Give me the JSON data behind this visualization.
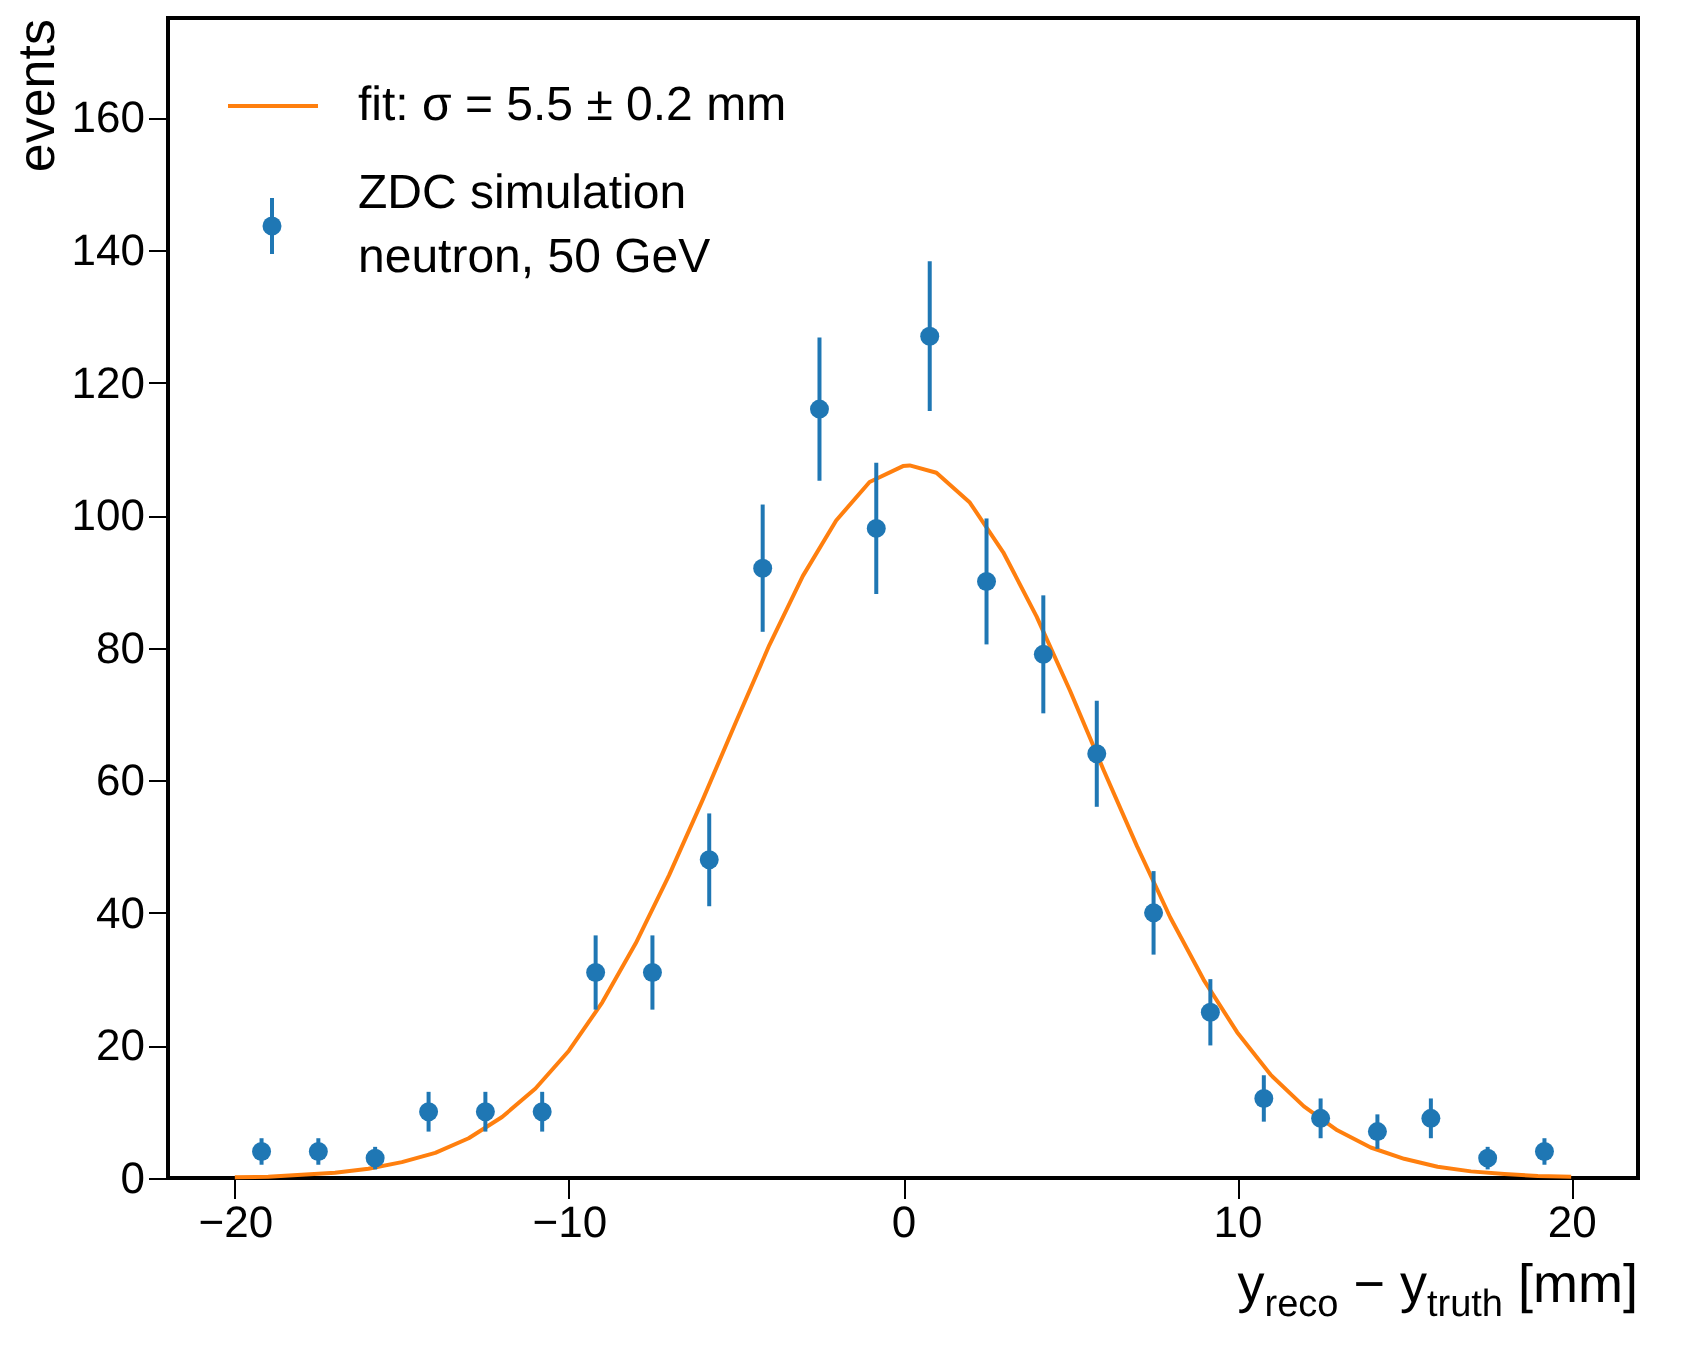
{
  "chart_data": {
    "type": "scatter",
    "xlabel": "y$_{reco}$ − y$_{truth}$ [mm]",
    "ylabel": "events",
    "xlim": [
      -22,
      22
    ],
    "xticks": [
      -20,
      -10,
      0,
      10,
      20
    ],
    "ylim": [
      0,
      175
    ],
    "yticks": [
      0,
      20,
      40,
      60,
      80,
      100,
      120,
      140,
      160
    ],
    "grid": false,
    "legend": "top left",
    "series": [
      {
        "name": "fit: σ = 5.5 ± 0.2 mm",
        "type": "line",
        "line_style": "solid",
        "color": "#ff7f0e",
        "x": [
          -20,
          -19,
          -18,
          -17,
          -16,
          -15,
          -14,
          -13,
          -12,
          -11,
          -10,
          -9,
          -8,
          -7,
          -6,
          -5,
          -4,
          -3,
          -2,
          -1,
          0,
          0.2,
          1,
          2,
          3,
          4,
          5,
          6,
          7,
          8,
          9,
          10,
          11,
          12,
          13,
          14,
          15,
          16,
          17,
          18,
          19,
          20
        ],
        "values": [
          0.1,
          0.2,
          0.5,
          0.8,
          1.4,
          2.4,
          3.8,
          6.0,
          9.2,
          13.5,
          19.2,
          26.5,
          35.4,
          45.7,
          57.0,
          68.8,
          80.4,
          90.8,
          99.2,
          105.0,
          107.4,
          107.5,
          106.4,
          101.9,
          94.4,
          84.7,
          73.5,
          61.6,
          50.1,
          39.3,
          29.9,
          22.0,
          15.6,
          10.8,
          7.2,
          4.6,
          2.9,
          1.7,
          1.0,
          0.6,
          0.3,
          0.2
        ]
      },
      {
        "name": "ZDC simulation\nneutron, 50 GeV",
        "marker": "circle",
        "color": "#1f77b4",
        "x": [
          -19.2,
          -17.5,
          -15.8,
          -14.2,
          -12.5,
          -10.8,
          -9.2,
          -7.5,
          -5.8,
          -4.2,
          -2.5,
          -0.8,
          0.8,
          2.5,
          4.2,
          5.8,
          7.5,
          9.2,
          10.8,
          12.5,
          14.2,
          15.8,
          17.5,
          19.2
        ],
        "values": [
          4,
          4,
          3,
          10,
          10,
          10,
          31,
          31,
          48,
          92,
          116,
          98,
          127,
          90,
          79,
          64,
          40,
          25,
          12,
          9,
          7,
          9,
          3,
          4
        ],
        "errors": [
          2,
          2,
          1.7,
          3,
          3,
          3,
          5.6,
          5.6,
          7,
          9.6,
          10.8,
          9.9,
          11.3,
          9.5,
          8.9,
          8,
          6.3,
          5,
          3.5,
          3,
          2.6,
          3,
          1.7,
          2
        ]
      }
    ]
  }
}
